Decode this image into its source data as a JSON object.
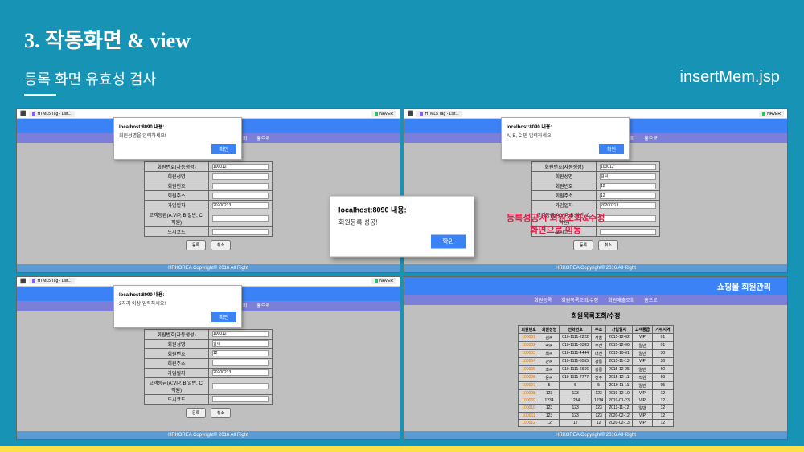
{
  "title": {
    "main": "3. 작동화면 & view",
    "sub": "등록 화면 유효성 검사",
    "file": "insertMem.jsp"
  },
  "browser": {
    "tab1": "HTML5 Tag - List...",
    "host": "localhost:8090 내용:",
    "naver": "NAVER"
  },
  "nav": {
    "n1": "회원등록",
    "n2": "회원목록조회/수정",
    "n3": "회원매출조회",
    "n4": "홈으로"
  },
  "modal1": {
    "msg": "회원성명을 입력하세요!",
    "btn": "확인"
  },
  "modal2": {
    "msg": "A, B, C 만 입력하세요!",
    "btn": "확인"
  },
  "modal3": {
    "msg": "2자리 이상 입력하세요!",
    "btn": "확인"
  },
  "centerModal": {
    "title": "localhost:8090 내용:",
    "msg": "회원등록 성공!",
    "btn": "확인"
  },
  "redText1": "등록성공시 회원조회&수정",
  "redText2": "화면으로 이동",
  "formTitle": "홈쇼핑 회원 등록",
  "formFields": {
    "f1": {
      "label": "회원번호(자동생성)",
      "val": "100012"
    },
    "f2": {
      "label": "회원성명",
      "val": "김씨"
    },
    "f3": {
      "label": "회원번호",
      "val": "12"
    },
    "f4": {
      "label": "회원주소",
      "val": ""
    },
    "f5": {
      "label": "가입일자",
      "val": "20200213"
    },
    "f6": {
      "label": "고객등급(A:VIP, B:일반, C:직원)",
      "val": ""
    },
    "f7": {
      "label": "도시코드",
      "val": ""
    }
  },
  "formBtns": {
    "b1": "등록",
    "b2": "취소"
  },
  "footer": "HRKOREA Copyright© 2016 All Right",
  "panel4": {
    "title": "쇼핑몰 회원관리",
    "subtitle": "회원목록조회/수정"
  },
  "tableHeaders": {
    "h1": "회원번호",
    "h2": "회원성명",
    "h3": "전화번호",
    "h4": "주소",
    "h5": "가입일자",
    "h6": "고객등급",
    "h7": "거주지역"
  },
  "tableRows": [
    {
      "c1": "100001",
      "c2": "김씨",
      "c3": "010-1111-2222",
      "c4": "서울",
      "c5": "2015-12-02",
      "c6": "VIP",
      "c7": "01"
    },
    {
      "c1": "100002",
      "c2": "박씨",
      "c3": "010-1111-3333",
      "c4": "부산",
      "c5": "2015-12-06",
      "c6": "일반",
      "c7": "01"
    },
    {
      "c1": "100003",
      "c2": "최씨",
      "c3": "010-1111-4444",
      "c4": "대전",
      "c5": "2015-10-01",
      "c6": "일반",
      "c7": "30"
    },
    {
      "c1": "100004",
      "c2": "강씨",
      "c3": "010-1111-5555",
      "c4": "강릉",
      "c5": "2015-11-13",
      "c6": "VIP",
      "c7": "30"
    },
    {
      "c1": "100005",
      "c2": "조씨",
      "c3": "010-1111-6666",
      "c4": "강릉",
      "c5": "2015-12-25",
      "c6": "일반",
      "c7": "60"
    },
    {
      "c1": "100006",
      "c2": "윤씨",
      "c3": "010-1111-7777",
      "c4": "전주",
      "c5": "2015-12-11",
      "c6": "직원",
      "c7": "60"
    },
    {
      "c1": "100007",
      "c2": "5",
      "c3": "5",
      "c4": "5",
      "c5": "2019-11-11",
      "c6": "일반",
      "c7": "05"
    },
    {
      "c1": "100008",
      "c2": "123",
      "c3": "123",
      "c4": "123",
      "c5": "2019-12-10",
      "c6": "VIP",
      "c7": "12"
    },
    {
      "c1": "100009",
      "c2": "1234",
      "c3": "1234",
      "c4": "1234",
      "c5": "2019-01-23",
      "c6": "VIP",
      "c7": "12"
    },
    {
      "c1": "100010",
      "c2": "123",
      "c3": "123",
      "c4": "123",
      "c5": "2011-11-12",
      "c6": "일반",
      "c7": "12"
    },
    {
      "c1": "100011",
      "c2": "123",
      "c3": "123",
      "c4": "123",
      "c5": "2020-02-12",
      "c6": "VIP",
      "c7": "12"
    },
    {
      "c1": "100012",
      "c2": "12",
      "c3": "12",
      "c4": "12",
      "c5": "2020-02-13",
      "c6": "VIP",
      "c7": "12"
    }
  ]
}
